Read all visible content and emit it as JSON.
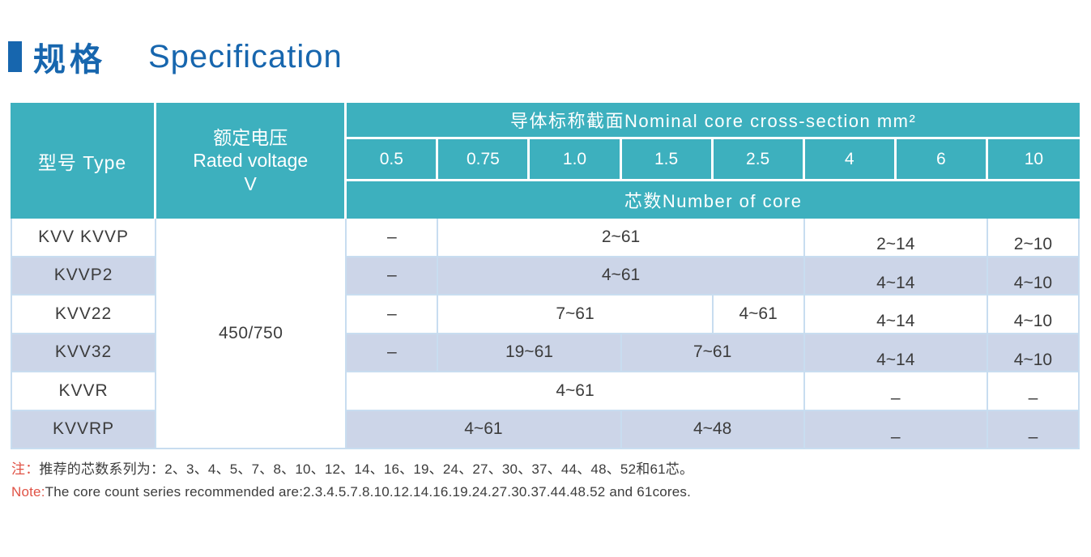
{
  "title": {
    "zh": "规格",
    "en": "Specification"
  },
  "colors": {
    "title_blue": "#1766ae",
    "header_teal": "#3db0be",
    "row_alt_blue": "#ccd5e8",
    "grid_line_blue": "#c8ddf0",
    "note_red": "#e05245",
    "body_text": "#3c3c3c"
  },
  "table": {
    "header": {
      "type_label": "型号  Type",
      "voltage_zh": "额定电压",
      "voltage_en": "Rated voltage",
      "voltage_unit": "V",
      "cross_section_label": "导体标称截面Nominal core cross-section mm²",
      "sizes": [
        "0.5",
        "0.75",
        "1.0",
        "1.5",
        "2.5",
        "4",
        "6",
        "10"
      ],
      "core_label": "芯数Number of core"
    },
    "voltage_value": "450/750",
    "rows": [
      {
        "type": "KVV  KVVP",
        "cells": [
          {
            "text": "–"
          },
          {
            "text": "2~61"
          },
          {
            "text": "2~14"
          },
          {
            "text": "2~10"
          }
        ]
      },
      {
        "type": "KVVP2",
        "cells": [
          {
            "text": "–"
          },
          {
            "text": "4~61"
          },
          {
            "text": "4~14"
          },
          {
            "text": "4~10"
          }
        ]
      },
      {
        "type": "KVV22",
        "cells": [
          {
            "text": "–"
          },
          {
            "text": "7~61"
          },
          {
            "text": "4~61"
          },
          {
            "text": "4~14"
          },
          {
            "text": "4~10"
          }
        ]
      },
      {
        "type": "KVV32",
        "cells": [
          {
            "text": "–"
          },
          {
            "text": "19~61"
          },
          {
            "text": "7~61"
          },
          {
            "text": "4~14"
          },
          {
            "text": "4~10"
          }
        ]
      },
      {
        "type": "KVVR",
        "cells": [
          {
            "text": "4~61"
          },
          {
            "text": "–"
          },
          {
            "text": "–"
          }
        ]
      },
      {
        "type": "KVVRP",
        "cells": [
          {
            "text": "4~61"
          },
          {
            "text": "4~48"
          },
          {
            "text": "–"
          },
          {
            "text": "–"
          }
        ]
      }
    ]
  },
  "notes": [
    {
      "prefix": "注：",
      "text": "推荐的芯数系列为：2、3、4、5、7、8、10、12、14、16、19、24、27、30、37、44、48、52和61芯。"
    },
    {
      "prefix": "Note:",
      "text": "The core count series recommended are:2.3.4.5.7.8.10.12.14.16.19.24.27.30.37.44.48.52 and 61cores."
    }
  ]
}
